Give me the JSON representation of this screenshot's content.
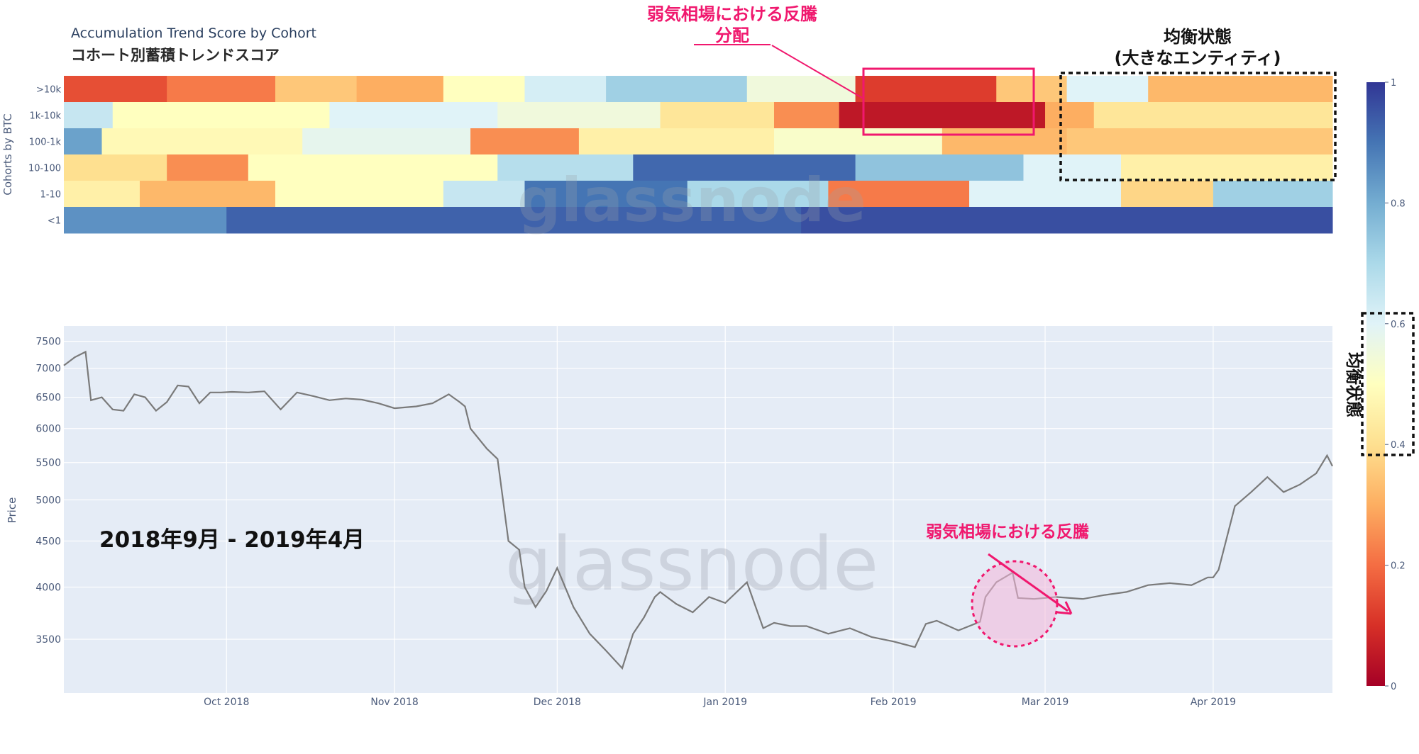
{
  "title": "Accumulation Trend Score by Cohort",
  "subtitle": "コホート別蓄積トレンドスコア",
  "watermark": "glassnode",
  "colors": {
    "price_line": "#7a7a7a",
    "price_bg": "#e5ecf6",
    "grid": "#ffffff",
    "axis_text": "#4a5a7a",
    "annotation_pink": "#f0186e",
    "annotation_fill": "#f4b6d8",
    "annotation_black": "#111111"
  },
  "annotations": {
    "rally_distribution_line1": "弱気相場における反騰",
    "rally_distribution_line2": "分配",
    "equilibrium_big_line1": "均衡状態",
    "equilibrium_big_line2": "(大きなエンティティ)",
    "equilibrium_colorbar": "均衡状態",
    "period": "2018年9月 - 2019年4月",
    "price_rally": "弱気相場における反騰"
  },
  "chart_data": [
    {
      "type": "heatmap",
      "ylabel": "Cohorts by BTC",
      "rows": [
        ">10k",
        "1k-10k",
        "100-1k",
        "10-100",
        "1-10",
        "<1"
      ],
      "x_range": [
        "2018-09-01",
        "2019-04-23"
      ],
      "zlim": [
        0,
        1
      ],
      "colorscale": "RdYlBu",
      "colorbar_ticks": [
        0,
        0.2,
        0.4,
        0.6,
        0.8,
        1
      ],
      "segments_note_values": "each row: list of [start_date, end_date, score]",
      "values": {
        ">10k": [
          [
            "2018-09-01",
            "2018-09-20",
            0.15
          ],
          [
            "2018-09-20",
            "2018-10-10",
            0.22
          ],
          [
            "2018-10-10",
            "2018-10-25",
            0.35
          ],
          [
            "2018-10-25",
            "2018-11-10",
            0.3
          ],
          [
            "2018-11-10",
            "2018-11-25",
            0.5
          ],
          [
            "2018-11-25",
            "2018-12-10",
            0.62
          ],
          [
            "2018-12-10",
            "2019-01-05",
            0.72
          ],
          [
            "2019-01-05",
            "2019-01-25",
            0.55
          ],
          [
            "2019-01-25",
            "2019-02-20",
            0.12
          ],
          [
            "2019-02-20",
            "2019-03-05",
            0.35
          ],
          [
            "2019-03-05",
            "2019-03-20",
            0.6
          ],
          [
            "2019-03-20",
            "2019-04-23",
            0.32
          ]
        ],
        "1k-10k": [
          [
            "2018-09-01",
            "2018-09-10",
            0.65
          ],
          [
            "2018-09-10",
            "2018-10-20",
            0.5
          ],
          [
            "2018-10-20",
            "2018-11-20",
            0.6
          ],
          [
            "2018-11-20",
            "2018-12-20",
            0.55
          ],
          [
            "2018-12-20",
            "2019-01-10",
            0.42
          ],
          [
            "2019-01-10",
            "2019-01-22",
            0.25
          ],
          [
            "2019-01-22",
            "2019-03-01",
            0.05
          ],
          [
            "2019-03-01",
            "2019-03-10",
            0.3
          ],
          [
            "2019-03-10",
            "2019-04-23",
            0.42
          ]
        ],
        "100-1k": [
          [
            "2018-09-01",
            "2018-09-08",
            0.82
          ],
          [
            "2018-09-08",
            "2018-10-15",
            0.48
          ],
          [
            "2018-10-15",
            "2018-11-15",
            0.58
          ],
          [
            "2018-11-15",
            "2018-12-05",
            0.25
          ],
          [
            "2018-12-05",
            "2019-01-10",
            0.45
          ],
          [
            "2019-01-10",
            "2019-02-10",
            0.52
          ],
          [
            "2019-02-10",
            "2019-03-05",
            0.32
          ],
          [
            "2019-03-05",
            "2019-04-23",
            0.35
          ]
        ],
        "10-100": [
          [
            "2018-09-01",
            "2018-09-20",
            0.4
          ],
          [
            "2018-09-20",
            "2018-10-05",
            0.25
          ],
          [
            "2018-10-05",
            "2018-11-20",
            0.5
          ],
          [
            "2018-11-20",
            "2018-12-15",
            0.68
          ],
          [
            "2018-12-15",
            "2019-01-25",
            0.92
          ],
          [
            "2019-01-25",
            "2019-02-25",
            0.75
          ],
          [
            "2019-02-25",
            "2019-03-15",
            0.6
          ],
          [
            "2019-03-15",
            "2019-04-23",
            0.45
          ]
        ],
        "1-10": [
          [
            "2018-09-01",
            "2018-09-15",
            0.45
          ],
          [
            "2018-09-15",
            "2018-10-10",
            0.32
          ],
          [
            "2018-10-10",
            "2018-11-10",
            0.5
          ],
          [
            "2018-11-10",
            "2018-11-25",
            0.65
          ],
          [
            "2018-11-25",
            "2018-12-25",
            0.9
          ],
          [
            "2018-12-25",
            "2019-01-20",
            0.7
          ],
          [
            "2019-01-20",
            "2019-02-15",
            0.22
          ],
          [
            "2019-02-15",
            "2019-03-15",
            0.6
          ],
          [
            "2019-03-15",
            "2019-04-01",
            0.38
          ],
          [
            "2019-04-01",
            "2019-04-23",
            0.72
          ]
        ],
        "<1": [
          [
            "2018-09-01",
            "2018-10-01",
            0.85
          ],
          [
            "2018-10-01",
            "2019-01-15",
            0.93
          ],
          [
            "2019-01-15",
            "2019-04-23",
            0.96
          ]
        ]
      }
    },
    {
      "type": "line",
      "ylabel": "Price",
      "y_scale": "log",
      "yticks": [
        3500,
        4000,
        4500,
        5000,
        5500,
        6000,
        6500,
        7000,
        7500
      ],
      "ylim": [
        3050,
        7800
      ],
      "xticks": [
        "Oct 2018",
        "Nov 2018",
        "Dec 2018",
        "Jan 2019",
        "Feb 2019",
        "Mar 2019",
        "Apr 2019"
      ],
      "xtick_dates": [
        "2018-10-01",
        "2018-11-01",
        "2018-12-01",
        "2019-01-01",
        "2019-02-01",
        "2019-03-01",
        "2019-04-01"
      ],
      "x_range": [
        "2018-09-01",
        "2019-04-23"
      ],
      "series": [
        {
          "name": "",
          "x": [
            "2018-09-01",
            "2018-09-03",
            "2018-09-05",
            "2018-09-06",
            "2018-09-08",
            "2018-09-10",
            "2018-09-12",
            "2018-09-14",
            "2018-09-16",
            "2018-09-18",
            "2018-09-20",
            "2018-09-22",
            "2018-09-24",
            "2018-09-26",
            "2018-09-28",
            "2018-09-30",
            "2018-10-02",
            "2018-10-05",
            "2018-10-08",
            "2018-10-11",
            "2018-10-14",
            "2018-10-17",
            "2018-10-20",
            "2018-10-23",
            "2018-10-26",
            "2018-10-29",
            "2018-11-01",
            "2018-11-05",
            "2018-11-08",
            "2018-11-11",
            "2018-11-13",
            "2018-11-14",
            "2018-11-15",
            "2018-11-18",
            "2018-11-20",
            "2018-11-22",
            "2018-11-24",
            "2018-11-25",
            "2018-11-27",
            "2018-11-29",
            "2018-12-01",
            "2018-12-04",
            "2018-12-07",
            "2018-12-10",
            "2018-12-13",
            "2018-12-15",
            "2018-12-17",
            "2018-12-19",
            "2018-12-20",
            "2018-12-23",
            "2018-12-26",
            "2018-12-29",
            "2019-01-01",
            "2019-01-05",
            "2019-01-08",
            "2019-01-10",
            "2019-01-13",
            "2019-01-16",
            "2019-01-20",
            "2019-01-24",
            "2019-01-28",
            "2019-02-01",
            "2019-02-05",
            "2019-02-07",
            "2019-02-09",
            "2019-02-13",
            "2019-02-17",
            "2019-02-18",
            "2019-02-20",
            "2019-02-23",
            "2019-02-24",
            "2019-02-27",
            "2019-03-03",
            "2019-03-08",
            "2019-03-12",
            "2019-03-16",
            "2019-03-20",
            "2019-03-24",
            "2019-03-28",
            "2019-03-31",
            "2019-04-01",
            "2019-04-02",
            "2019-04-05",
            "2019-04-08",
            "2019-04-11",
            "2019-04-14",
            "2019-04-17",
            "2019-04-20",
            "2019-04-22",
            "2019-04-23"
          ],
          "y": [
            7050,
            7200,
            7300,
            6450,
            6500,
            6300,
            6280,
            6550,
            6500,
            6280,
            6420,
            6700,
            6680,
            6400,
            6580,
            6580,
            6590,
            6580,
            6600,
            6300,
            6580,
            6520,
            6450,
            6480,
            6460,
            6400,
            6320,
            6350,
            6400,
            6550,
            6420,
            6350,
            6000,
            5700,
            5550,
            4500,
            4400,
            4000,
            3800,
            3960,
            4200,
            3800,
            3550,
            3400,
            3250,
            3550,
            3700,
            3900,
            3950,
            3830,
            3750,
            3900,
            3840,
            4050,
            3600,
            3650,
            3620,
            3620,
            3550,
            3600,
            3520,
            3480,
            3430,
            3640,
            3670,
            3580,
            3660,
            3900,
            4050,
            4150,
            3890,
            3880,
            3900,
            3880,
            3920,
            3950,
            4020,
            4040,
            4020,
            4100,
            4100,
            4180,
            4920,
            5100,
            5300,
            5100,
            5200,
            5350,
            5600,
            5450
          ]
        }
      ]
    }
  ]
}
